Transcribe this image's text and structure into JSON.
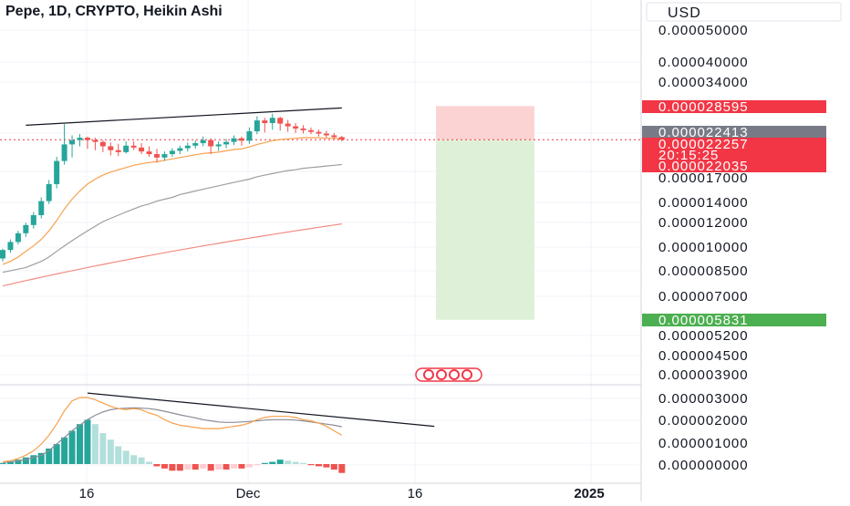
{
  "header": {
    "title": "Pepe, 1D, CRYPTO, Heikin Ashi",
    "currency": "USD"
  },
  "price_axis": {
    "ticks": [
      "0.000050000",
      "0.000040000",
      "0.000034000",
      "0.000017000",
      "0.000014000",
      "0.000012000",
      "0.000010000",
      "0.000008500",
      "0.000007000",
      "0.000005200",
      "0.000004500",
      "0.000003900"
    ],
    "tags": [
      {
        "label": "0.000028595",
        "color": "#f23645"
      },
      {
        "label": "0.000022413",
        "color": "#787b86"
      },
      {
        "label": "0.000022257",
        "color": "#f23645"
      },
      {
        "label": "20:15:25",
        "color": "#f23645"
      },
      {
        "label": "0.000022035",
        "color": "#f23645"
      },
      {
        "label": "0.000005831",
        "color": "#4caf50"
      }
    ]
  },
  "macd_axis": {
    "ticks": [
      "0.000003000",
      "0.000002000",
      "0.000001000",
      "0.000000000"
    ]
  },
  "time_axis": {
    "ticks": [
      "16",
      "Dec",
      "16",
      "2025"
    ]
  },
  "colors": {
    "up": "#26a69a",
    "down": "#ef5350",
    "up_light": "#b2dfdb",
    "down_light": "#ffcdd2",
    "ma_fast": "#f7a14c",
    "ma_mid": "#9e9e9e",
    "ma_slow": "#f28b82",
    "stop_zone": "#fbd3d3",
    "target_zone": "#dff0d8"
  },
  "chart_data": [
    {
      "type": "candlestick",
      "title": "Pepe, 1D, CRYPTO, Heikin Ashi",
      "ylabel": "USD",
      "yscale": "log",
      "ohlc": [
        [
          9.2e-06,
          9.9e-06,
          9e-06,
          9.8e-06
        ],
        [
          9.8e-06,
          1.06e-05,
          9.6e-06,
          1.04e-05
        ],
        [
          1.04e-05,
          1.13e-05,
          1.02e-05,
          1.11e-05
        ],
        [
          1.11e-05,
          1.2e-05,
          1.08e-05,
          1.18e-05
        ],
        [
          1.18e-05,
          1.3e-05,
          1.15e-05,
          1.27e-05
        ],
        [
          1.27e-05,
          1.45e-05,
          1.24e-05,
          1.41e-05
        ],
        [
          1.41e-05,
          1.65e-05,
          1.38e-05,
          1.6e-05
        ],
        [
          1.6e-05,
          1.96e-05,
          1.55e-05,
          1.9e-05
        ],
        [
          1.9e-05,
          2.5e-05,
          1.85e-05,
          2.15e-05
        ],
        [
          2.15e-05,
          2.3e-05,
          1.95e-05,
          2.22e-05
        ],
        [
          2.22e-05,
          2.32e-05,
          2.12e-05,
          2.26e-05
        ],
        [
          2.26e-05,
          2.28e-05,
          2.08e-05,
          2.22e-05
        ],
        [
          2.22e-05,
          2.26e-05,
          2.06e-05,
          2.19e-05
        ],
        [
          2.19e-05,
          2.22e-05,
          2.03e-05,
          2.12e-05
        ],
        [
          2.12e-05,
          2.18e-05,
          1.98e-05,
          2.06e-05
        ],
        [
          2.06e-05,
          2.16e-05,
          1.97e-05,
          2.03e-05
        ],
        [
          2.03e-05,
          2.2e-05,
          2.01e-05,
          2.13e-05
        ],
        [
          2.13e-05,
          2.2e-05,
          2.06e-05,
          2.1e-05
        ],
        [
          2.1e-05,
          2.17e-05,
          2e-05,
          2.04e-05
        ],
        [
          2.04e-05,
          2.12e-05,
          1.96e-05,
          2e-05
        ],
        [
          2e-05,
          2.08e-05,
          1.88e-05,
          1.95e-05
        ],
        [
          1.95e-05,
          2.04e-05,
          1.9e-05,
          2e-05
        ],
        [
          2e-05,
          2.09e-05,
          1.96e-05,
          2.05e-05
        ],
        [
          2.05e-05,
          2.13e-05,
          2e-05,
          2.09e-05
        ],
        [
          2.09e-05,
          2.18e-05,
          2.04e-05,
          2.13e-05
        ],
        [
          2.13e-05,
          2.22e-05,
          2.08e-05,
          2.17e-05
        ],
        [
          2.17e-05,
          2.28e-05,
          2.12e-05,
          2.22e-05
        ],
        [
          2.22e-05,
          2.25e-05,
          2e-05,
          2.12e-05
        ],
        [
          2.12e-05,
          2.2e-05,
          2.05e-05,
          2.15e-05
        ],
        [
          2.15e-05,
          2.24e-05,
          2.09e-05,
          2.19e-05
        ],
        [
          2.19e-05,
          2.3e-05,
          2.14e-05,
          2.25e-05
        ],
        [
          2.25e-05,
          2.28e-05,
          2.13e-05,
          2.21e-05
        ],
        [
          2.21e-05,
          2.44e-05,
          2.16e-05,
          2.37e-05
        ],
        [
          2.37e-05,
          2.65e-05,
          2.32e-05,
          2.57e-05
        ],
        [
          2.57e-05,
          2.62e-05,
          2.35e-05,
          2.52e-05
        ],
        [
          2.52e-05,
          2.7e-05,
          2.4e-05,
          2.62e-05
        ],
        [
          2.62e-05,
          2.64e-05,
          2.38e-05,
          2.51e-05
        ],
        [
          2.51e-05,
          2.58e-05,
          2.36e-05,
          2.46e-05
        ],
        [
          2.46e-05,
          2.52e-05,
          2.34e-05,
          2.42e-05
        ],
        [
          2.42e-05,
          2.48e-05,
          2.33e-05,
          2.39e-05
        ],
        [
          2.39e-05,
          2.44e-05,
          2.32e-05,
          2.36e-05
        ],
        [
          2.36e-05,
          2.4e-05,
          2.28e-05,
          2.33e-05
        ],
        [
          2.33e-05,
          2.38e-05,
          2.26e-05,
          2.3e-05
        ],
        [
          2.3e-05,
          2.34e-05,
          2.24e-05,
          2.27e-05
        ],
        [
          2.27e-05,
          2.29e-05,
          2.2e-05,
          2.23e-05
        ]
      ],
      "indicators": {
        "ma_fast": [
          8.8e-06,
          9e-06,
          9.3e-06,
          9.7e-06,
          1.01e-05,
          1.06e-05,
          1.13e-05,
          1.22e-05,
          1.33e-05,
          1.43e-05,
          1.52e-05,
          1.6e-05,
          1.66e-05,
          1.71e-05,
          1.75e-05,
          1.78e-05,
          1.81e-05,
          1.84e-05,
          1.86e-05,
          1.88e-05,
          1.89e-05,
          1.91e-05,
          1.93e-05,
          1.95e-05,
          1.97e-05,
          1.99e-05,
          2.01e-05,
          2.02e-05,
          2.03e-05,
          2.05e-05,
          2.07e-05,
          2.08e-05,
          2.11e-05,
          2.15e-05,
          2.18e-05,
          2.21e-05,
          2.23e-05,
          2.24e-05,
          2.25e-05,
          2.26e-05,
          2.26e-05,
          2.26e-05,
          2.25e-05,
          2.25e-05,
          2.24e-05
        ],
        "ma_mid": [
          8.3e-06,
          8.4e-06,
          8.5e-06,
          8.6e-06,
          8.8e-06,
          9e-06,
          9.3e-06,
          9.7e-06,
          1.01e-05,
          1.05e-05,
          1.09e-05,
          1.13e-05,
          1.17e-05,
          1.21e-05,
          1.24e-05,
          1.27e-05,
          1.3e-05,
          1.33e-05,
          1.36e-05,
          1.38e-05,
          1.41e-05,
          1.43e-05,
          1.45e-05,
          1.48e-05,
          1.5e-05,
          1.52e-05,
          1.54e-05,
          1.56e-05,
          1.58e-05,
          1.6e-05,
          1.62e-05,
          1.64e-05,
          1.66e-05,
          1.69e-05,
          1.71e-05,
          1.73e-05,
          1.75e-05,
          1.77e-05,
          1.78e-05,
          1.8e-05,
          1.81e-05,
          1.82e-05,
          1.83e-05,
          1.84e-05,
          1.85e-05
        ],
        "ma_slow": [
          7.5e-06,
          7.6e-06,
          7.7e-06,
          7.8e-06,
          7.9e-06,
          8e-06,
          8.1e-06,
          8.2e-06,
          8.3e-06,
          8.4e-06,
          8.5e-06,
          8.6e-06,
          8.7e-06,
          8.8e-06,
          8.9e-06,
          9e-06,
          9.1e-06,
          9.2e-06,
          9.3e-06,
          9.4e-06,
          9.5e-06,
          9.6e-06,
          9.7e-06,
          9.8e-06,
          9.9e-06,
          1e-05,
          1.01e-05,
          1.02e-05,
          1.03e-05,
          1.04e-05,
          1.05e-05,
          1.06e-05,
          1.07e-05,
          1.08e-05,
          1.09e-05,
          1.1e-05,
          1.11e-05,
          1.12e-05,
          1.13e-05,
          1.14e-05,
          1.15e-05,
          1.16e-05,
          1.17e-05,
          1.18e-05,
          1.19e-05
        ]
      },
      "position": {
        "entry": 2.2257e-05,
        "stop": 2.8595e-05,
        "target": 5.831e-06
      },
      "trendline": {
        "start_index": 3,
        "start_value": 2.48e-05,
        "end_index": 44,
        "end_value": 2.82e-05
      }
    },
    {
      "type": "bar",
      "title": "",
      "ylabel": "",
      "histogram": [
        5e-08,
        1e-07,
        2e-07,
        3e-07,
        4e-07,
        5e-07,
        7e-07,
        9e-07,
        1.2e-06,
        1.5e-06,
        1.8e-06,
        2e-06,
        1.8e-06,
        1.4e-06,
        1.1e-06,
        8e-07,
        6e-07,
        4e-07,
        3e-07,
        1e-07,
        -1e-07,
        -2e-07,
        -3e-07,
        -3e-07,
        -2.5e-07,
        -2.5e-07,
        -2e-07,
        -3e-07,
        -2.5e-07,
        -2.5e-07,
        -2e-07,
        -2e-07,
        -1.5e-07,
        -5e-08,
        5e-08,
        1e-07,
        2e-07,
        1.5e-07,
        1e-07,
        5e-08,
        -5e-08,
        -1e-07,
        -1.5e-07,
        -2.5e-07,
        -4e-07
      ],
      "macd": [
        1e-07,
        1.5e-07,
        2.5e-07,
        4e-07,
        6e-07,
        9e-07,
        1.3e-06,
        1.8e-06,
        2.4e-06,
        2.85e-06,
        3e-06,
        3e-06,
        2.9e-06,
        2.75e-06,
        2.6e-06,
        2.5e-06,
        2.45e-06,
        2.5e-06,
        2.45e-06,
        2.3e-06,
        2.2e-06,
        2e-06,
        1.85e-06,
        1.75e-06,
        1.7e-06,
        1.65e-06,
        1.6e-06,
        1.6e-06,
        1.6e-06,
        1.65e-06,
        1.7e-06,
        1.75e-06,
        1.85e-06,
        2e-06,
        2.1e-06,
        2.15e-06,
        2.15e-06,
        2.15e-06,
        2.1e-06,
        2e-06,
        1.95e-06,
        1.85e-06,
        1.7e-06,
        1.5e-06,
        1.3e-06
      ],
      "signal": [
        8e-08,
        1e-07,
        1.5e-07,
        2e-07,
        3e-07,
        4e-07,
        6e-07,
        9e-07,
        1.2e-06,
        1.5e-06,
        1.75e-06,
        2e-06,
        2.2e-06,
        2.35e-06,
        2.45e-06,
        2.5e-06,
        2.52e-06,
        2.53e-06,
        2.52e-06,
        2.5e-06,
        2.45e-06,
        2.38e-06,
        2.3e-06,
        2.22e-06,
        2.15e-06,
        2.08e-06,
        2e-06,
        1.95e-06,
        1.9e-06,
        1.88e-06,
        1.88e-06,
        1.9e-06,
        1.92e-06,
        1.95e-06,
        1.98e-06,
        2e-06,
        2e-06,
        2e-06,
        1.98e-06,
        1.95e-06,
        1.9e-06,
        1.85e-06,
        1.8e-06,
        1.75e-06,
        1.68e-06
      ],
      "ylim": [
        -5e-07,
        3.5e-06
      ],
      "trendline": {
        "start_index": 11,
        "start_value": 3.2e-06,
        "end_index": 56,
        "end_value": 1.7e-06
      }
    }
  ]
}
